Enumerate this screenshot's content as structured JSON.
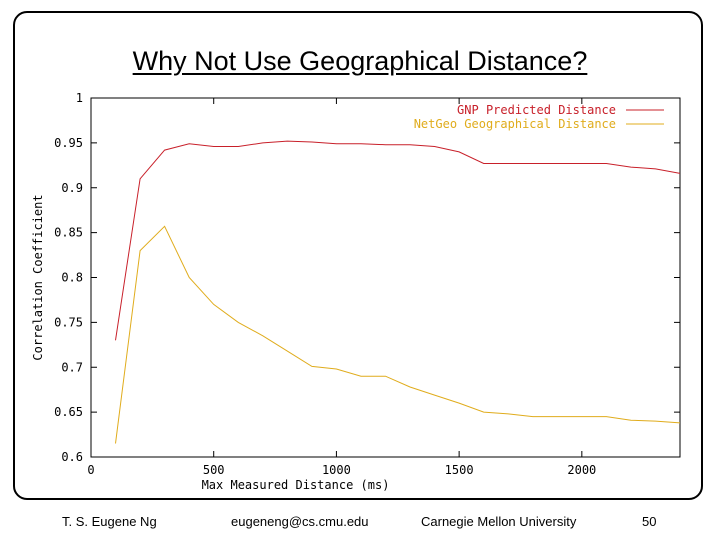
{
  "slide": {
    "title": "Why Not Use Geographical Distance?",
    "footer": {
      "author": "T. S. Eugene Ng",
      "email": "eugeneng@cs.cmu.edu",
      "institution": "Carnegie Mellon University",
      "page": "50"
    }
  },
  "chart_data": {
    "type": "line",
    "xlabel": "Max Measured Distance (ms)",
    "ylabel": "Correlation Coefficient",
    "xlim": [
      0,
      2400
    ],
    "ylim": [
      0.6,
      1.0
    ],
    "xticks": [
      0,
      500,
      1000,
      1500,
      2000
    ],
    "xtick_labels": [
      "0",
      "500",
      "1000",
      "1500",
      "2000"
    ],
    "yticks": [
      0.6,
      0.65,
      0.7,
      0.75,
      0.8,
      0.85,
      0.9,
      0.95,
      1.0
    ],
    "ytick_labels": [
      "0.6",
      "0.65",
      "0.7",
      "0.75",
      "0.8",
      "0.85",
      "0.9",
      "0.95",
      "1"
    ],
    "legend_position": "top-right",
    "series": [
      {
        "name": "GNP Predicted Distance",
        "color": "#c8202a",
        "x": [
          100,
          200,
          300,
          400,
          500,
          600,
          700,
          800,
          900,
          1000,
          1100,
          1200,
          1300,
          1400,
          1500,
          1600,
          1700,
          1800,
          1900,
          2000,
          2100,
          2200,
          2300,
          2400
        ],
        "y": [
          0.73,
          0.91,
          0.942,
          0.949,
          0.946,
          0.946,
          0.95,
          0.952,
          0.951,
          0.949,
          0.949,
          0.948,
          0.948,
          0.946,
          0.94,
          0.927,
          0.927,
          0.927,
          0.927,
          0.927,
          0.927,
          0.923,
          0.921,
          0.916
        ]
      },
      {
        "name": "NetGeo Geographical Distance",
        "color": "#e0ac1c",
        "x": [
          100,
          200,
          300,
          400,
          500,
          600,
          700,
          800,
          900,
          1000,
          1100,
          1200,
          1300,
          1400,
          1500,
          1600,
          1700,
          1800,
          1900,
          2000,
          2100,
          2200,
          2300,
          2400
        ],
        "y": [
          0.615,
          0.83,
          0.857,
          0.8,
          0.77,
          0.75,
          0.735,
          0.718,
          0.701,
          0.698,
          0.69,
          0.69,
          0.678,
          0.669,
          0.66,
          0.65,
          0.648,
          0.645,
          0.645,
          0.645,
          0.645,
          0.641,
          0.64,
          0.638
        ]
      }
    ]
  }
}
